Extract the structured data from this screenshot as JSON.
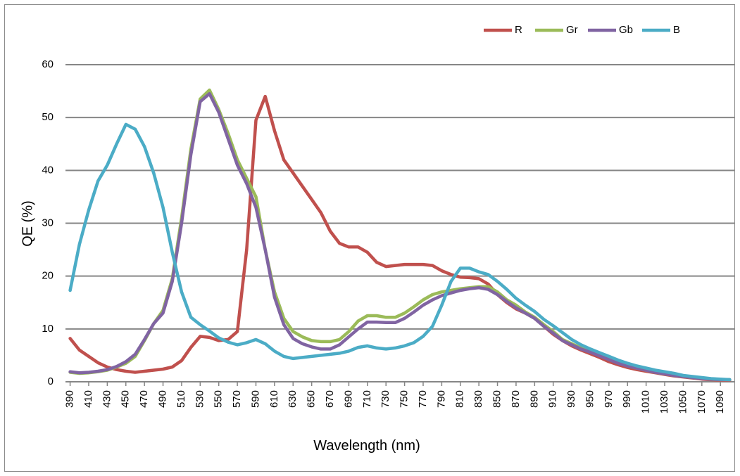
{
  "chart_data": {
    "type": "line",
    "title": "",
    "xlabel": "Wavelength (nm)",
    "ylabel": "QE (%)",
    "ylim": [
      0,
      60
    ],
    "yticks": [
      "0",
      "10",
      "20",
      "30",
      "40",
      "50",
      "60"
    ],
    "xticks": [
      "390",
      "410",
      "430",
      "450",
      "470",
      "490",
      "510",
      "530",
      "550",
      "570",
      "590",
      "610",
      "630",
      "650",
      "670",
      "690",
      "710",
      "730",
      "750",
      "770",
      "790",
      "810",
      "830",
      "850",
      "870",
      "890",
      "910",
      "930",
      "950",
      "970",
      "990",
      "1010",
      "1030",
      "1050",
      "1070",
      "1090"
    ],
    "grid": "horizontal",
    "legend_position": "top-right",
    "x": [
      390,
      400,
      410,
      420,
      430,
      440,
      450,
      460,
      470,
      480,
      490,
      500,
      510,
      520,
      530,
      540,
      550,
      560,
      570,
      580,
      590,
      600,
      610,
      620,
      630,
      640,
      650,
      660,
      670,
      680,
      690,
      700,
      710,
      720,
      730,
      740,
      750,
      760,
      770,
      780,
      790,
      800,
      810,
      820,
      830,
      840,
      850,
      860,
      870,
      880,
      890,
      900,
      910,
      920,
      930,
      940,
      950,
      960,
      970,
      980,
      990,
      1000,
      1010,
      1020,
      1030,
      1040,
      1050,
      1060,
      1070,
      1080,
      1090,
      1100
    ],
    "series": [
      {
        "name": "R",
        "color": "#c0504d",
        "values": [
          8.2,
          6.0,
          4.8,
          3.6,
          2.8,
          2.3,
          2.0,
          1.8,
          2.0,
          2.2,
          2.4,
          2.8,
          4.0,
          6.5,
          8.6,
          8.4,
          7.8,
          8.0,
          9.5,
          25,
          49.5,
          54,
          47.5,
          42,
          39.5,
          37,
          34.5,
          32,
          28.5,
          26.2,
          25.5,
          25.5,
          24.5,
          22.6,
          21.8,
          22,
          22.2,
          22.2,
          22.2,
          22,
          21,
          20.3,
          19.8,
          19.7,
          19.5,
          18.5,
          16.5,
          15,
          13.8,
          13,
          12,
          10.5,
          9,
          7.8,
          6.8,
          6,
          5.3,
          4.6,
          3.8,
          3.2,
          2.7,
          2.3,
          2.0,
          1.7,
          1.4,
          1.1,
          0.9,
          0.7,
          0.5,
          0.4,
          0.3,
          0.3
        ]
      },
      {
        "name": "Gr",
        "color": "#9bbb59",
        "values": [
          1.8,
          1.6,
          1.7,
          1.9,
          2.2,
          2.8,
          3.5,
          4.8,
          7.8,
          11,
          13.5,
          19.5,
          31,
          44,
          53.5,
          55.2,
          51.5,
          47,
          42,
          38.5,
          35,
          25,
          17,
          12,
          9.5,
          8.5,
          7.8,
          7.6,
          7.6,
          8.0,
          9.5,
          11.5,
          12.5,
          12.5,
          12.2,
          12.2,
          13,
          14.2,
          15.5,
          16.5,
          17,
          17.3,
          17.6,
          17.8,
          18,
          18,
          17,
          15.5,
          14.5,
          13.2,
          12.2,
          10.8,
          9.5,
          8.0,
          7.2,
          6.4,
          5.7,
          5.0,
          4.3,
          3.6,
          3.0,
          2.6,
          2.2,
          1.8,
          1.5,
          1.2,
          1.0,
          0.8,
          0.6,
          0.5,
          0.4,
          0.4
        ]
      },
      {
        "name": "Gb",
        "color": "#8064a2",
        "values": [
          1.9,
          1.7,
          1.8,
          2.0,
          2.3,
          2.9,
          3.8,
          5.2,
          8,
          11,
          13,
          19,
          30,
          43,
          53,
          54.5,
          51,
          46,
          41,
          37.5,
          33,
          25,
          16,
          10.8,
          8.2,
          7.2,
          6.6,
          6.2,
          6.2,
          7.0,
          8.5,
          10,
          11.3,
          11.3,
          11.2,
          11.2,
          12,
          13.2,
          14.5,
          15.5,
          16.3,
          16.8,
          17.3,
          17.6,
          17.8,
          17.5,
          16.5,
          15.2,
          14,
          13,
          12,
          10.5,
          9.2,
          7.8,
          7,
          6.2,
          5.6,
          4.9,
          4.2,
          3.5,
          3.0,
          2.6,
          2.2,
          1.8,
          1.5,
          1.2,
          1.0,
          0.8,
          0.6,
          0.5,
          0.4,
          0.4
        ]
      },
      {
        "name": "B",
        "color": "#4bacc6",
        "values": [
          17.3,
          26,
          32.5,
          38,
          41,
          45,
          48.7,
          47.8,
          44.5,
          39.5,
          33,
          24.5,
          17,
          12.2,
          10.8,
          9.6,
          8.3,
          7.5,
          7.0,
          7.4,
          8.0,
          7.2,
          5.8,
          4.8,
          4.4,
          4.6,
          4.8,
          5.0,
          5.2,
          5.4,
          5.8,
          6.5,
          6.8,
          6.4,
          6.2,
          6.4,
          6.8,
          7.4,
          8.6,
          10.5,
          14.5,
          19,
          21.5,
          21.5,
          20.8,
          20.3,
          19,
          17.5,
          15.8,
          14.5,
          13.3,
          11.8,
          10.6,
          9.3,
          8,
          7,
          6.2,
          5.5,
          4.8,
          4.1,
          3.5,
          3.0,
          2.6,
          2.2,
          1.9,
          1.6,
          1.2,
          1.0,
          0.8,
          0.6,
          0.5,
          0.4
        ]
      }
    ]
  }
}
